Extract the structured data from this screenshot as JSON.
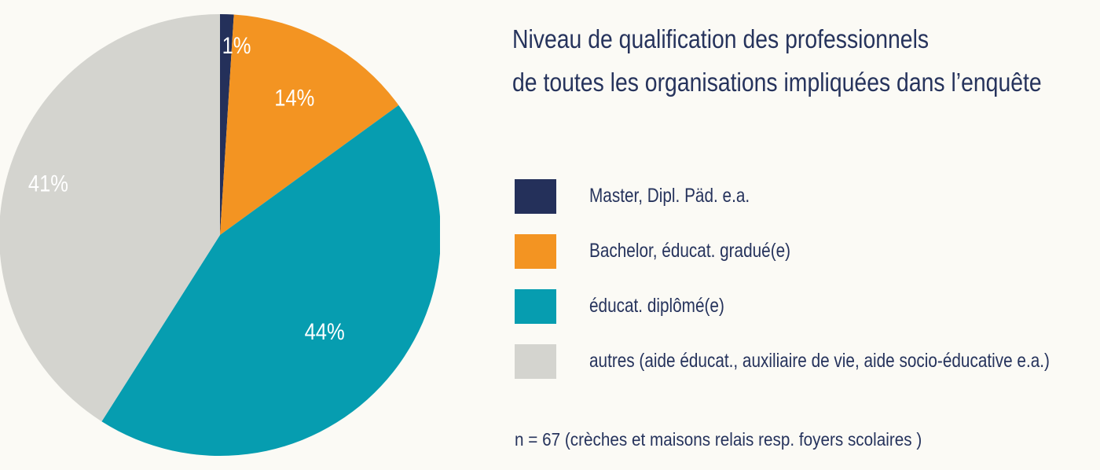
{
  "chart_data": {
    "type": "pie",
    "title_lines": [
      "Niveau de qualification des professionnels",
      "de toutes les organisations impliquées dans l’enquête"
    ],
    "slices": [
      {
        "label": "Master, Dipl. Päd. e.a.",
        "value": 1,
        "display": "1%",
        "color": "#24305a"
      },
      {
        "label": "Bachelor, éducat. gradué(e)",
        "value": 14,
        "display": "14%",
        "color": "#f39422"
      },
      {
        "label": "éducat. diplômé(e)",
        "value": 44,
        "display": "44%",
        "color": "#069db0"
      },
      {
        "label": "autres (aide éducat., auxiliaire de vie, aide socio-éducative e.a.)",
        "value": 41,
        "display": "41%",
        "color": "#d4d4cf"
      }
    ],
    "legend_position": "right",
    "footnote": "n = 67 (crèches et maisons relais resp. foyers scolaires )"
  }
}
